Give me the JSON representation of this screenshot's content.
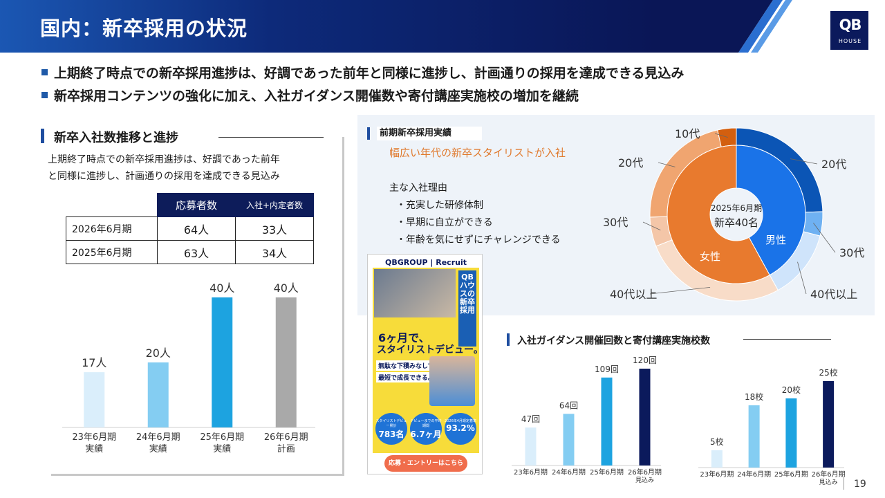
{
  "header": {
    "title": "国内：新卒採用の状況",
    "logo_main": "QB",
    "logo_sub": "HOUSE"
  },
  "bullets": [
    "上期終了時点での新卒採用進捗は、好調であった前年と同様に進捗し、計画通りの採用を達成できる見込み",
    "新卒採用コンテンツの強化に加え、入社ガイダンス開催数や寄付講座実施校の増加を継続"
  ],
  "left": {
    "section_title": "新卒入社数推移と進捗",
    "description_line1": "上期終了時点での新卒採用進捗は、好調であった前年",
    "description_line2": "と同様に進捗し、計画通りの採用を達成できる見込み",
    "table": {
      "headers": [
        "応募者数",
        "入社+内定者数"
      ],
      "rows": [
        {
          "label": "2026年6月期",
          "applicants": "64人",
          "hires": "33人"
        },
        {
          "label": "2025年6月期",
          "applicants": "63人",
          "hires": "34人"
        }
      ]
    }
  },
  "right": {
    "section_title": "前期新卒採用実績",
    "subtitle": "幅広い年代の新卒スタイリストが入社",
    "reasons_title": "主な入社理由",
    "reasons": [
      "・充実した研修体制",
      "・早期に自立ができる",
      "・年齢を気にせずにチャレンジできる"
    ],
    "donut_center_line1": "2025年6月期",
    "donut_center_line2": "新卒40名",
    "guidance_title": "入社ガイダンス開催回数と寄付講座実施校数"
  },
  "banner": {
    "brand": "QBGROUP | Recruit",
    "vertical": "QBハウスの新卒採用",
    "headline1": "6ヶ月で、",
    "headline2": "スタイリストデビュー。",
    "copy1": "無駄な下積みなしで、",
    "copy2": "最短で成長できる。",
    "stats": [
      {
        "label": "スタイリストデビュー累計",
        "value": "783名"
      },
      {
        "label": "デビューまでの平均期間",
        "value": "6.7ヶ月"
      },
      {
        "label": "2026年4月期定着率",
        "value": "93.2%"
      }
    ],
    "cta": "応募・エントリーはこちら"
  },
  "page_number": "19",
  "colors": {
    "navy": "#0b1a5c",
    "blue": "#1f5aa8",
    "orange": "#e87a2e",
    "light_blue": "#d9eefb",
    "gray": "#a9a9a9"
  },
  "chart_data": [
    {
      "type": "bar",
      "title": "",
      "categories": [
        "23年6月期\n実績",
        "24年6月期\n実績",
        "25年6月期\n実績",
        "26年6月期\n計画"
      ],
      "values": [
        17,
        20,
        40,
        40
      ],
      "labels": [
        "17人",
        "20人",
        "40人",
        "40人"
      ],
      "colors": [
        "#daeefb",
        "#84cdf2",
        "#1da3e0",
        "#a9a9a9"
      ]
    },
    {
      "type": "pie",
      "title": "2025年6月期 新卒40名",
      "inner": [
        {
          "name": "男性",
          "share": 0.42,
          "color": "#1a73e8"
        },
        {
          "name": "女性",
          "share": 0.58,
          "color": "#e87a2e"
        }
      ],
      "outer": [
        {
          "name": "20代",
          "share": 0.245,
          "color": "#0b55b5",
          "group": "男性"
        },
        {
          "name": "30代",
          "share": 0.045,
          "color": "#6fb1f2",
          "group": "男性"
        },
        {
          "name": "40代以上",
          "share": 0.13,
          "color": "#cfe4fb",
          "group": "男性"
        },
        {
          "name": "40代以上",
          "share": 0.27,
          "color": "#f8dcc8",
          "group": "女性"
        },
        {
          "name": "30代",
          "share": 0.055,
          "color": "#f4c6a8",
          "group": "女性"
        },
        {
          "name": "20代",
          "share": 0.22,
          "color": "#f0a570",
          "group": "女性"
        },
        {
          "name": "10代",
          "share": 0.035,
          "color": "#d35f0f",
          "group": "女性"
        }
      ]
    },
    {
      "type": "bar",
      "title": "入社ガイダンス開催回数",
      "categories": [
        "23年6月期",
        "24年6月期",
        "25年6月期",
        "26年6月期\n見込み"
      ],
      "values": [
        47,
        64,
        109,
        120
      ],
      "labels": [
        "47回",
        "64回",
        "109回",
        "120回"
      ],
      "colors": [
        "#daeefb",
        "#84cdf2",
        "#1da3e0",
        "#0b1a5c"
      ]
    },
    {
      "type": "bar",
      "title": "寄付講座実施校数",
      "categories": [
        "23年6月期",
        "24年6月期",
        "25年6月期",
        "26年6月期\n見込み"
      ],
      "values": [
        5,
        18,
        20,
        25
      ],
      "labels": [
        "5校",
        "18校",
        "20校",
        "25校"
      ],
      "colors": [
        "#daeefb",
        "#84cdf2",
        "#1da3e0",
        "#0b1a5c"
      ]
    }
  ]
}
